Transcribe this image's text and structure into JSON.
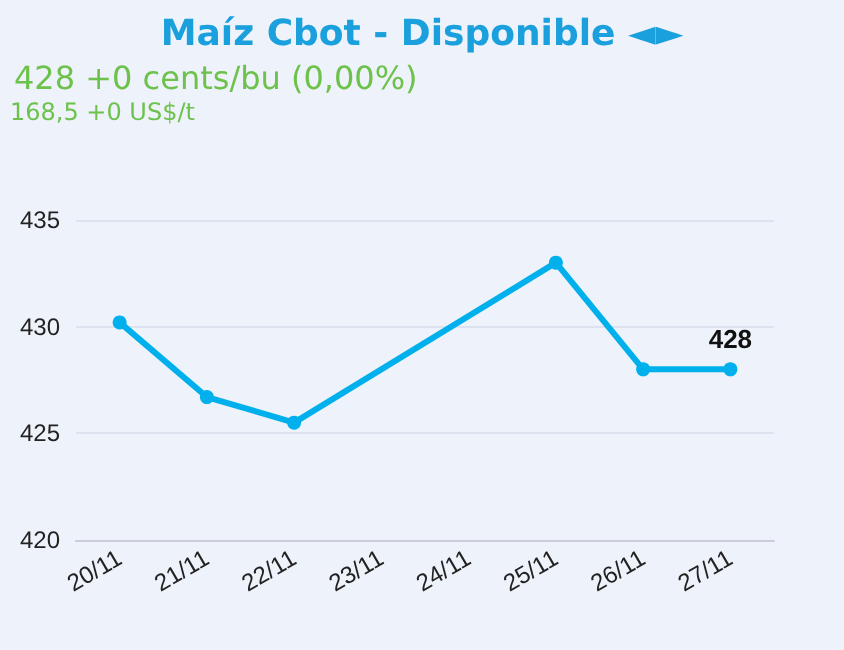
{
  "chart_data": {
    "type": "line",
    "title": "Maíz Cbot - Disponible ◄►",
    "subtitle": "428 +0 cents/bu (0,00%)",
    "annotations": [
      "168,5 +0 US$/t"
    ],
    "categories": [
      "20/11",
      "21/11",
      "22/11",
      "23/11",
      "24/11",
      "25/11",
      "26/11",
      "27/11"
    ],
    "series": [
      {
        "color": "#00b0ec",
        "values": [
          430.2,
          426.7,
          425.5,
          null,
          null,
          433.0,
          428.0,
          428.0
        ],
        "value_labels": [
          null,
          null,
          null,
          null,
          null,
          null,
          null,
          "428"
        ]
      }
    ],
    "ylim": [
      420,
      435
    ],
    "yticks": [
      420,
      425,
      430,
      435
    ],
    "grid": "y",
    "marker": "circle",
    "line_style": "solid"
  }
}
